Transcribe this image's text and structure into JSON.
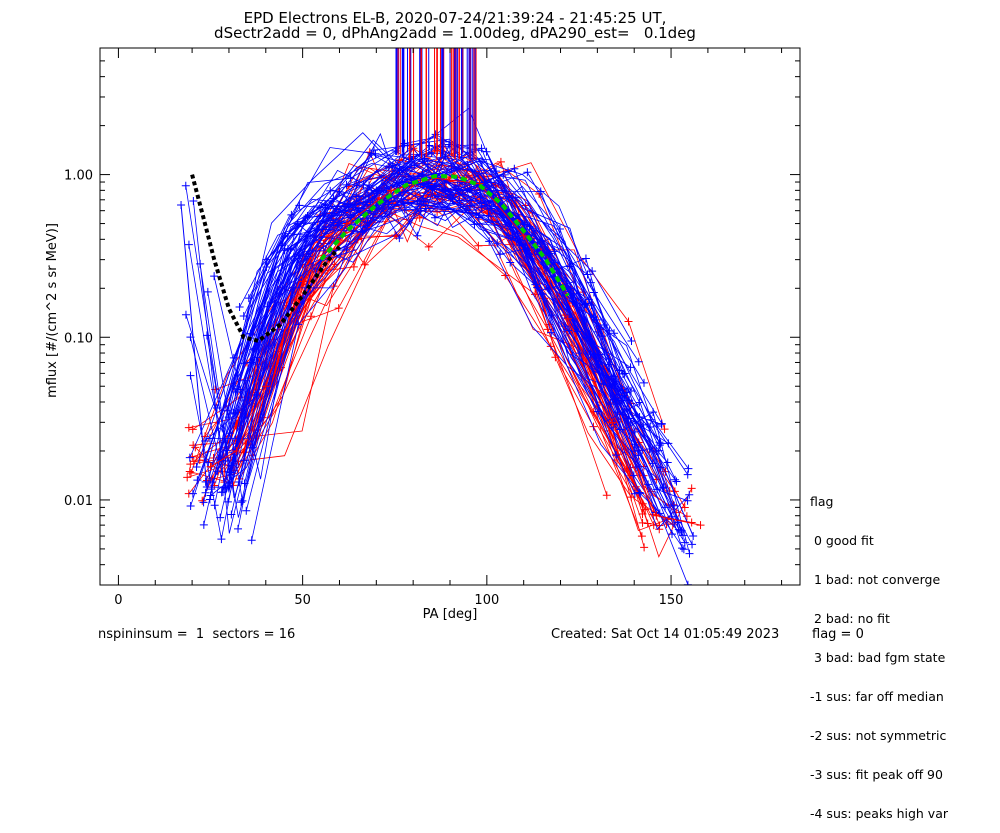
{
  "header": {
    "title_line1": "EPD Electrons EL-B, 2020-07-24/21:39:24 - 21:45:25 UT,",
    "title_line2": "dSectr2add = 0, dPhAng2add = 1.00deg, dPA290_est=   0.1deg"
  },
  "footer": {
    "spin_info": "nspininsum =  1  sectors = 16",
    "created": "Created: Sat Oct 14 01:05:49 2023",
    "flag": "flag = 0"
  },
  "legend": {
    "title": "flag",
    "items": [
      " 0 good fit",
      " 1 bad: not converge",
      " 2 bad: no fit",
      " 3 bad: bad fgm state",
      "-1 sus: far off median",
      "-2 sus: not symmetric",
      "-3 sus: fit peak off 90",
      "-4 sus: peaks high var"
    ]
  },
  "colors": {
    "series_a": "#0000ff",
    "series_b": "#ff0000",
    "median_fit": "#00cc00",
    "reference_curve": "#000000",
    "axes": "#000000"
  },
  "chart_data": {
    "type": "line",
    "xlabel": "PA [deg]",
    "ylabel": "mflux [#/(cm^2 s sr MeV)]",
    "xlim": [
      -5,
      185
    ],
    "ylim": [
      0.003,
      6.0
    ],
    "yscale": "log",
    "xticks": [
      0,
      50,
      100,
      150
    ],
    "xtick_labels": [
      "0",
      "50",
      "100",
      "150"
    ],
    "yticks": [
      0.01,
      0.1,
      1.0
    ],
    "ytick_labels": [
      "0.01",
      "0.10",
      "1.00"
    ],
    "grid": false,
    "marker": "+",
    "series": [
      {
        "color": "blue",
        "x": [
          17,
          24,
          30,
          36,
          46,
          58,
          70,
          80,
          92,
          98,
          110,
          122,
          134,
          146,
          156
        ],
        "y": [
          0.65,
          0.012,
          0.012,
          0.07,
          0.35,
          0.55,
          0.8,
          0.95,
          0.92,
          0.85,
          0.45,
          0.2,
          0.05,
          0.02,
          0.006
        ]
      },
      {
        "color": "red",
        "x": [
          25,
          32,
          40,
          50,
          62,
          74,
          86,
          98,
          110,
          122,
          134,
          146,
          158
        ],
        "y": [
          0.016,
          0.02,
          0.05,
          0.22,
          0.5,
          0.8,
          0.95,
          0.88,
          0.42,
          0.13,
          0.03,
          0.008,
          0.007
        ]
      },
      {
        "name": "median fit",
        "color": "green",
        "x": [
          55,
          62,
          70,
          78,
          86,
          92,
          98,
          104,
          110,
          116,
          122
        ],
        "y": [
          0.3,
          0.45,
          0.65,
          0.86,
          0.98,
          0.97,
          0.86,
          0.66,
          0.45,
          0.3,
          0.18
        ]
      },
      {
        "name": "reference curve",
        "color": "black",
        "x": [
          20,
          23,
          26,
          30,
          34,
          38,
          44,
          50,
          56,
          60
        ],
        "y": [
          1.0,
          0.55,
          0.3,
          0.15,
          0.1,
          0.095,
          0.12,
          0.18,
          0.28,
          0.36
        ]
      }
    ],
    "annotations": [
      {
        "type": "vertical-line-cluster",
        "x_range": [
          74,
          98
        ],
        "y_from": 1.2,
        "y_to": 6.0
      }
    ]
  }
}
